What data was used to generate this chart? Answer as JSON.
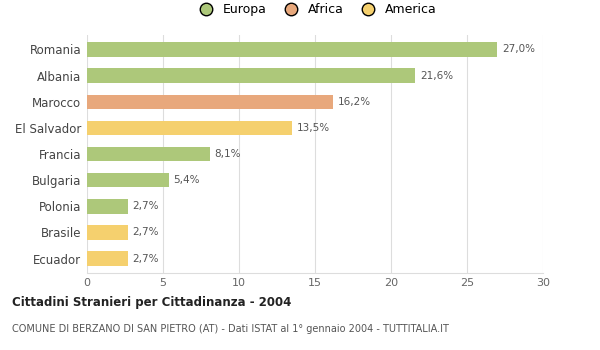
{
  "categories": [
    "Romania",
    "Albania",
    "Marocco",
    "El Salvador",
    "Francia",
    "Bulgaria",
    "Polonia",
    "Brasile",
    "Ecuador"
  ],
  "values": [
    27.0,
    21.6,
    16.2,
    13.5,
    8.1,
    5.4,
    2.7,
    2.7,
    2.7
  ],
  "labels": [
    "27,0%",
    "21,6%",
    "16,2%",
    "13,5%",
    "8,1%",
    "5,4%",
    "2,7%",
    "2,7%",
    "2,7%"
  ],
  "colors": [
    "#adc87a",
    "#adc87a",
    "#e8a87c",
    "#f5d06e",
    "#adc87a",
    "#adc87a",
    "#adc87a",
    "#f5d06e",
    "#f5d06e"
  ],
  "legend_items": [
    {
      "label": "Europa",
      "color": "#adc87a"
    },
    {
      "label": "Africa",
      "color": "#e8a87c"
    },
    {
      "label": "America",
      "color": "#f5d06e"
    }
  ],
  "title": "Cittadini Stranieri per Cittadinanza - 2004",
  "subtitle": "COMUNE DI BERZANO DI SAN PIETRO (AT) - Dati ISTAT al 1° gennaio 2004 - TUTTITALIA.IT",
  "xlim": [
    0,
    30
  ],
  "xticks": [
    0,
    5,
    10,
    15,
    20,
    25,
    30
  ],
  "background_color": "#ffffff",
  "grid_color": "#dddddd",
  "bar_height": 0.55
}
